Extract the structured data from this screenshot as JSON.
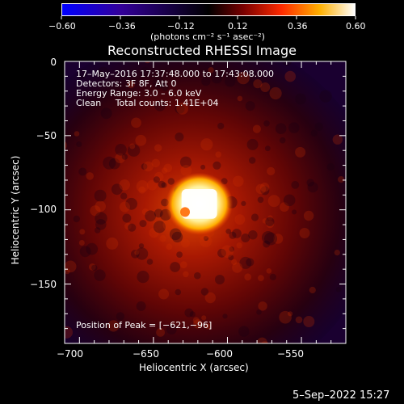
{
  "colorbar": {
    "min_label": "−0.60",
    "max_label": "0.60",
    "ticks": [
      "−0.60",
      "−0.36",
      "−0.12",
      "0.12",
      "0.36",
      "0.60"
    ],
    "units": "(photons cm⁻² s⁻¹ asec⁻²)",
    "min": -0.6,
    "max": 0.6,
    "stops": [
      "#0000ff",
      "#330099",
      "#000000",
      "#7a0000",
      "#ff2a00",
      "#ffb000",
      "#ffffff"
    ]
  },
  "chart_data": {
    "type": "heatmap",
    "title": "Reconstructed RHESSI Image",
    "xlabel": "Heliocentric X (arcsec)",
    "ylabel": "Heliocentric Y (arcsec)",
    "xlim": [
      -710,
      -520
    ],
    "ylim": [
      -190,
      0
    ],
    "x_ticks": [
      -700,
      -650,
      -600,
      -550
    ],
    "x_tick_labels": [
      "−700",
      "−650",
      "−600",
      "−550"
    ],
    "y_ticks": [
      0,
      -50,
      -100,
      -150
    ],
    "y_tick_labels": [
      "0",
      "−50",
      "−100",
      "−150"
    ],
    "annotations": [
      "17–May–2016 17:37:48.000 to 17:43:08.000",
      "Detectors: 3F 8F, Att 0",
      "Energy Range: 3.0 – 6.0 keV",
      "Clean     Total counts: 1.41E+04"
    ],
    "peak_label": "Position of Peak = [−621,−96]",
    "peak": [
      -621,
      -96
    ],
    "source": {
      "x": -619,
      "y": -96,
      "extent_x": 12,
      "extent_y": 5,
      "value": 0.6
    }
  },
  "footer": {
    "date": "5–Sep–2022 15:27"
  }
}
